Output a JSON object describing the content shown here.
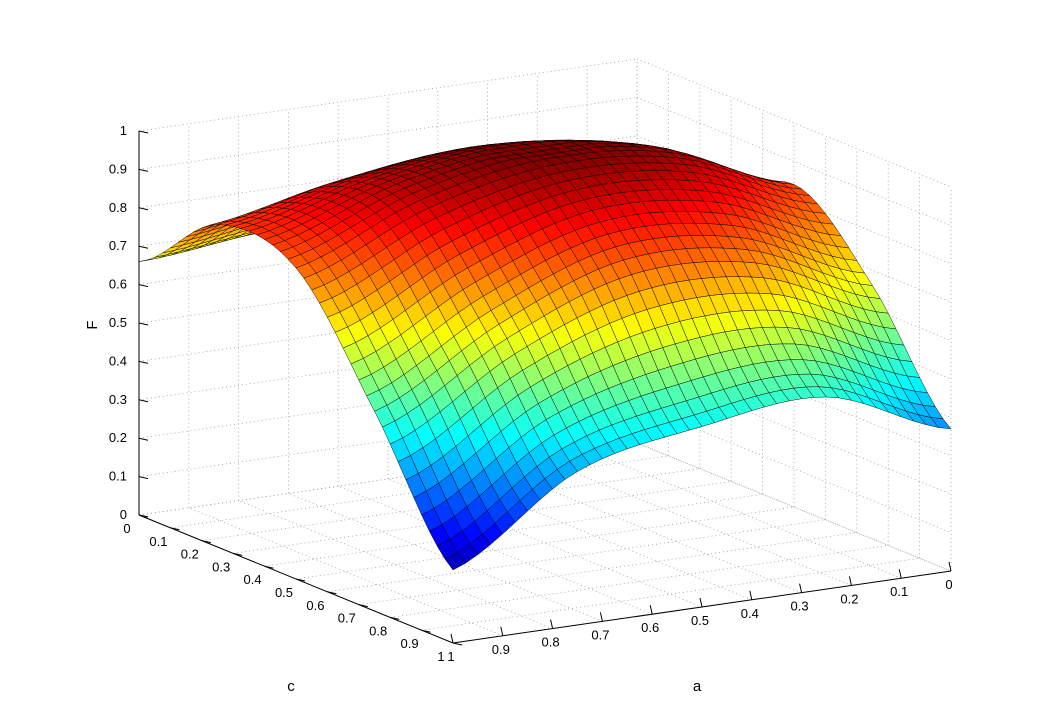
{
  "chart_data": {
    "type": "surface3d",
    "xlabel": "a",
    "ylabel": "c",
    "zlabel": "F",
    "xlim": [
      0,
      1
    ],
    "ylim": [
      0,
      1
    ],
    "zlim": [
      0,
      1
    ],
    "x_ticks": [
      "0",
      "0.1",
      "0.2",
      "0.3",
      "0.4",
      "0.5",
      "0.6",
      "0.7",
      "0.8",
      "0.9",
      "1"
    ],
    "y_ticks": [
      "0",
      "0.1",
      "0.2",
      "0.3",
      "0.4",
      "0.5",
      "0.6",
      "0.7",
      "0.8",
      "0.9",
      "1"
    ],
    "z_ticks": [
      "0",
      "0.1",
      "0.2",
      "0.3",
      "0.4",
      "0.5",
      "0.6",
      "0.7",
      "0.8",
      "0.9",
      "1"
    ],
    "grid": true,
    "colormap": "jet",
    "mesh_resolution": 40,
    "corner_values": [
      {
        "a": 0,
        "c": 0,
        "F": 0.52
      },
      {
        "a": 1,
        "c": 0,
        "F": 0.66
      },
      {
        "a": 0,
        "c": 1,
        "F": 0.37
      },
      {
        "a": 1,
        "c": 1,
        "F": 0.19
      }
    ],
    "ridge": {
      "a": 0.5,
      "c": 0.5,
      "F": 1.0
    },
    "surface_samples": {
      "a": [
        0,
        0.25,
        0.5,
        0.75,
        1
      ],
      "c": [
        0,
        0.25,
        0.5,
        0.75,
        1
      ],
      "F": [
        [
          0.52,
          0.68,
          0.84,
          0.66,
          0.37
        ],
        [
          0.63,
          0.87,
          0.97,
          0.8,
          0.5
        ],
        [
          0.69,
          0.94,
          1.0,
          0.82,
          0.47
        ],
        [
          0.69,
          0.91,
          0.94,
          0.7,
          0.4
        ],
        [
          0.66,
          0.84,
          0.81,
          0.52,
          0.19
        ]
      ]
    }
  }
}
